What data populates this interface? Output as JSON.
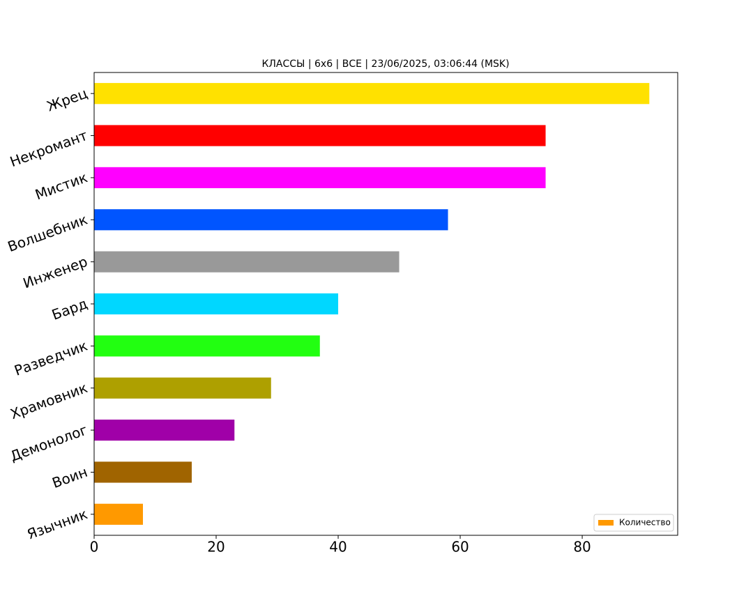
{
  "chart_data": {
    "type": "barh",
    "title": "КЛАССЫ | 6х6 | ВСЕ | 23/06/2025, 03:06:44 (MSK)",
    "categories": [
      "Жрец",
      "Некромант",
      "Мистик",
      "Волшебник",
      "Инженер",
      "Бард",
      "Разведчик",
      "Храмовник",
      "Демонолог",
      "Воин",
      "Язычник"
    ],
    "series": [
      {
        "name": "Количество",
        "color": "#ff9900",
        "values": [
          91,
          74,
          74,
          58,
          50,
          40,
          37,
          29,
          23,
          16,
          8
        ],
        "colors": [
          "#ffe100",
          "#ff0000",
          "#ff00ff",
          "#0055ff",
          "#999999",
          "#00d7ff",
          "#22ff11",
          "#aea000",
          "#a000a8",
          "#a06400",
          "#ff9900"
        ]
      }
    ],
    "xlim": [
      0,
      95.65
    ],
    "xticks": [
      0,
      20,
      40,
      60,
      80
    ],
    "grid": false,
    "legend": "lower right"
  }
}
